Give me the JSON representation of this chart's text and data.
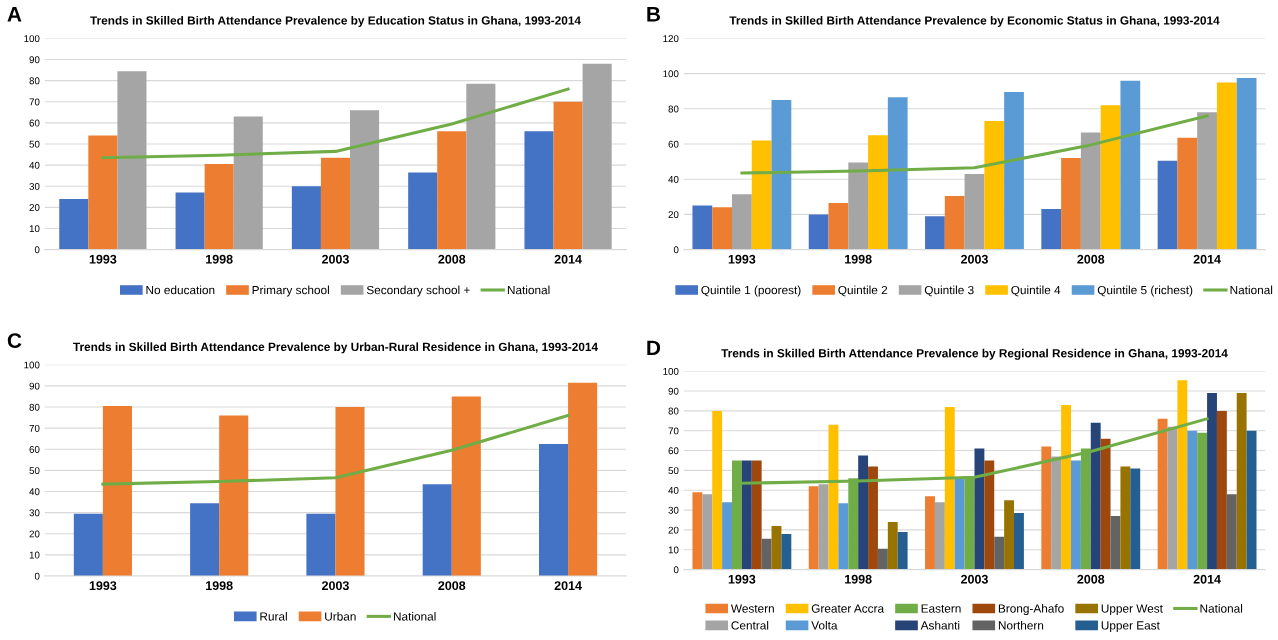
{
  "chart_data": [
    {
      "type": "bar",
      "title": "Trends in Skilled Birth Attendance Prevalence by Education Status in Ghana, 1993-2014",
      "annotations": [
        "A"
      ],
      "categories": [
        "1993",
        "1998",
        "2003",
        "2008",
        "2014"
      ],
      "ylim": [
        0,
        100
      ],
      "yticks": [
        0,
        10,
        20,
        30,
        40,
        50,
        60,
        70,
        80,
        90,
        100
      ],
      "grid": "y",
      "legend": "bottom",
      "series": [
        {
          "name": "No education",
          "color": "#4472c4",
          "values": [
            24,
            27,
            30,
            36.5,
            56
          ]
        },
        {
          "name": "Primary school",
          "color": "#ed7d31",
          "values": [
            54,
            40.5,
            43.5,
            56,
            70
          ]
        },
        {
          "name": "Secondary school +",
          "color": "#a5a5a5",
          "values": [
            84.5,
            63,
            66,
            78.5,
            88
          ]
        },
        {
          "name": "National",
          "type": "line",
          "color": "#70ad47",
          "values": [
            43.5,
            44.7,
            46.5,
            59.5,
            76
          ]
        }
      ]
    },
    {
      "type": "bar",
      "title": "Trends in Skilled Birth Attendance Prevalence by Economic Status in Ghana, 1993-2014",
      "annotations": [
        "B"
      ],
      "categories": [
        "1993",
        "1998",
        "2003",
        "2008",
        "2014"
      ],
      "ylim": [
        0,
        120
      ],
      "yticks": [
        0,
        20,
        40,
        60,
        80,
        100,
        120
      ],
      "grid": "y",
      "legend": "bottom",
      "series": [
        {
          "name": "Quintile 1 (poorest)",
          "color": "#4472c4",
          "values": [
            25,
            20,
            19,
            23,
            50.5
          ]
        },
        {
          "name": "Quintile 2",
          "color": "#ed7d31",
          "values": [
            24,
            26.5,
            30.5,
            52,
            63.5
          ]
        },
        {
          "name": "Quintile 3",
          "color": "#a5a5a5",
          "values": [
            31.5,
            49.5,
            43,
            66.5,
            78
          ]
        },
        {
          "name": "Quintile 4",
          "color": "#ffc000",
          "values": [
            62,
            65,
            73,
            82,
            95
          ]
        },
        {
          "name": "Quintile 5 (richest)",
          "color": "#5b9bd5",
          "values": [
            85,
            86.5,
            89.5,
            96,
            97.5
          ]
        },
        {
          "name": "National",
          "type": "line",
          "color": "#70ad47",
          "values": [
            43.5,
            44.7,
            46.5,
            59.5,
            76
          ]
        }
      ]
    },
    {
      "type": "bar",
      "title": "Trends in Skilled Birth Attendance Prevalence by Urban-Rural Residence in Ghana, 1993-2014",
      "annotations": [
        "C"
      ],
      "categories": [
        "1993",
        "1998",
        "2003",
        "2008",
        "2014"
      ],
      "ylim": [
        0,
        100
      ],
      "yticks": [
        0,
        10,
        20,
        30,
        40,
        50,
        60,
        70,
        80,
        90,
        100
      ],
      "grid": "y",
      "legend": "bottom",
      "series": [
        {
          "name": "Rural",
          "color": "#4472c4",
          "values": [
            29.5,
            34.5,
            29.5,
            43.5,
            62.5
          ]
        },
        {
          "name": "Urban",
          "color": "#ed7d31",
          "values": [
            80.5,
            76,
            80,
            85,
            91.5
          ]
        },
        {
          "name": "National",
          "type": "line",
          "color": "#70ad47",
          "values": [
            43.5,
            44.7,
            46.5,
            59.5,
            76
          ]
        }
      ]
    },
    {
      "type": "bar",
      "title": "Trends in Skilled Birth Attendance Prevalence by Regional Residence in Ghana, 1993-2014",
      "annotations": [
        "D"
      ],
      "categories": [
        "1993",
        "1998",
        "2003",
        "2008",
        "2014"
      ],
      "ylim": [
        0,
        100
      ],
      "yticks": [
        0,
        10,
        20,
        30,
        40,
        50,
        60,
        70,
        80,
        90,
        100
      ],
      "grid": "y",
      "legend": "bottom",
      "series": [
        {
          "name": "Western",
          "color": "#ed7d31",
          "values": [
            39,
            42,
            37,
            62,
            76
          ]
        },
        {
          "name": "Central",
          "color": "#a5a5a5",
          "values": [
            38,
            43,
            34,
            57,
            72
          ]
        },
        {
          "name": "Greater Accra",
          "color": "#ffc000",
          "values": [
            80,
            73,
            82,
            83,
            95.5
          ]
        },
        {
          "name": "Volta",
          "color": "#5b9bd5",
          "values": [
            34,
            33.5,
            46,
            55,
            70
          ]
        },
        {
          "name": "Eastern",
          "color": "#70ad47",
          "values": [
            55,
            46,
            47,
            61,
            69
          ]
        },
        {
          "name": "Ashanti",
          "color": "#264478",
          "values": [
            55,
            57.5,
            61,
            74,
            89
          ]
        },
        {
          "name": "Brong-Ahafo",
          "color": "#9e480e",
          "values": [
            55,
            52,
            55,
            66,
            80
          ]
        },
        {
          "name": "Northern",
          "color": "#636363",
          "values": [
            15.5,
            10.5,
            16.5,
            27,
            38
          ]
        },
        {
          "name": "Upper West",
          "color": "#997300",
          "values": [
            22,
            24,
            35,
            52,
            89
          ]
        },
        {
          "name": "Upper East",
          "color": "#255e91",
          "values": [
            18,
            19,
            28.5,
            51,
            70
          ]
        },
        {
          "name": "National",
          "type": "line",
          "color": "#70ad47",
          "values": [
            43.5,
            44.7,
            46.5,
            59.5,
            76
          ]
        }
      ]
    }
  ]
}
